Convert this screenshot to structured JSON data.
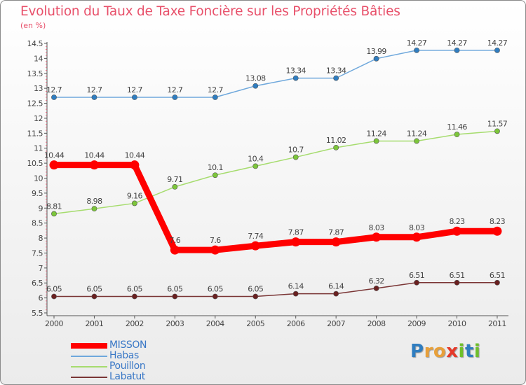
{
  "chart_data": {
    "type": "line",
    "title": "Evolution du Taux de Taxe Foncière sur les Propriétés Bâties",
    "ylabel": "(en %)",
    "xlabel": "",
    "x": [
      "2000",
      "2001",
      "2002",
      "2003",
      "2004",
      "2005",
      "2006",
      "2007",
      "2008",
      "2009",
      "2010",
      "2011"
    ],
    "ylim": [
      5.5,
      14.5
    ],
    "yticks": [
      5.5,
      6,
      6.5,
      7,
      7.5,
      8,
      8.5,
      9,
      9.5,
      10,
      10.5,
      11,
      11.5,
      12,
      12.5,
      13,
      13.5,
      14,
      14.5
    ],
    "grid": false,
    "legend_position": "bottom-left",
    "series": [
      {
        "name": "MISSON",
        "color": "#ff0000",
        "marker": "#ff0000",
        "values": [
          10.44,
          10.44,
          10.44,
          7.6,
          7.6,
          7.74,
          7.87,
          7.87,
          8.03,
          8.03,
          8.23,
          8.23
        ],
        "labels": [
          "10.44",
          "10.44",
          "10.44",
          "7.6",
          "7.6",
          "7.74",
          "7.87",
          "7.87",
          "8.03",
          "8.03",
          "8.23",
          "8.23"
        ]
      },
      {
        "name": "Habas",
        "color": "#6fa8dc",
        "marker": "#2f7dc0",
        "values": [
          12.7,
          12.7,
          12.7,
          12.7,
          12.7,
          13.08,
          13.34,
          13.34,
          13.99,
          14.27,
          14.27,
          14.27
        ],
        "labels": [
          "12.7",
          "12.7",
          "12.7",
          "12.7",
          "12.7",
          "13.08",
          "13.34",
          "13.34",
          "13.99",
          "14.27",
          "14.27",
          "14.27"
        ]
      },
      {
        "name": "Pouillon",
        "color": "#a6dc6e",
        "marker": "#7cc63a",
        "values": [
          8.81,
          8.98,
          9.16,
          9.71,
          10.1,
          10.4,
          10.7,
          11.02,
          11.24,
          11.24,
          11.46,
          11.57
        ],
        "labels": [
          "8.81",
          "8.98",
          "9.16",
          "9.71",
          "10.1",
          "10.4",
          "10.7",
          "11.02",
          "11.24",
          "11.24",
          "11.46",
          "11.57"
        ]
      },
      {
        "name": "Labatut",
        "color": "#7a3535",
        "marker": "#6a2020",
        "values": [
          6.05,
          6.05,
          6.05,
          6.05,
          6.05,
          6.05,
          6.14,
          6.14,
          6.32,
          6.51,
          6.51,
          6.51
        ],
        "labels": [
          "6.05",
          "6.05",
          "6.05",
          "6.05",
          "6.05",
          "6.05",
          "6.14",
          "6.14",
          "6.32",
          "6.51",
          "6.51",
          "6.51"
        ]
      }
    ]
  },
  "logo": {
    "letters": [
      "P",
      "r",
      "o",
      "x",
      "i",
      "t",
      "i"
    ],
    "colors": [
      "#2f7dc0",
      "#e8a03a",
      "#e8a03a",
      "#e53a2a",
      "#6fbf2a",
      "#2f7dc0",
      "#6fbf2a"
    ]
  }
}
